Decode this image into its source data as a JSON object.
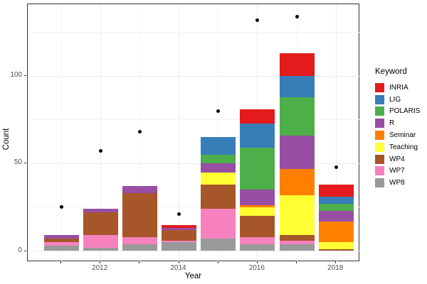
{
  "legend": {
    "title": "Keyword",
    "items": [
      {
        "label": "INRIA",
        "color": "#e41a1c"
      },
      {
        "label": "LIG",
        "color": "#377eb8"
      },
      {
        "label": "POLARIS",
        "color": "#4daf4a"
      },
      {
        "label": "R",
        "color": "#984ea3"
      },
      {
        "label": "Seminar",
        "color": "#ff7f00"
      },
      {
        "label": "Teaching",
        "color": "#ffff33"
      },
      {
        "label": "WP4",
        "color": "#a65628"
      },
      {
        "label": "WP7",
        "color": "#f781bf"
      },
      {
        "label": "WP8",
        "color": "#999999"
      }
    ]
  },
  "chart_data": {
    "type": "bar",
    "stacked": true,
    "title": "",
    "xlabel": "Year",
    "ylabel": "Count",
    "x": [
      2011,
      2012,
      2013,
      2014,
      2015,
      2016,
      2017,
      2018
    ],
    "series": [
      {
        "name": "INRIA",
        "color": "#e41a1c",
        "values": [
          0,
          0,
          0,
          2,
          0,
          8,
          13,
          7
        ]
      },
      {
        "name": "LIG",
        "color": "#377eb8",
        "values": [
          0,
          0,
          0,
          0,
          10,
          14,
          12,
          4
        ]
      },
      {
        "name": "POLARIS",
        "color": "#4daf4a",
        "values": [
          0,
          0,
          0,
          0,
          5,
          24,
          22,
          4
        ]
      },
      {
        "name": "R",
        "color": "#984ea3",
        "values": [
          2,
          2,
          4,
          1,
          5,
          9,
          19,
          6
        ]
      },
      {
        "name": "Seminar",
        "color": "#ff7f00",
        "values": [
          0,
          0,
          0,
          0,
          0,
          1,
          15,
          12
        ]
      },
      {
        "name": "Teaching",
        "color": "#ffff33",
        "values": [
          0,
          0,
          0,
          0,
          7,
          5,
          23,
          4
        ]
      },
      {
        "name": "WP4",
        "color": "#a65628",
        "values": [
          2,
          13,
          25,
          6,
          14,
          12,
          3,
          1
        ]
      },
      {
        "name": "WP7",
        "color": "#f781bf",
        "values": [
          2,
          7,
          4,
          1,
          17,
          4,
          2,
          0
        ]
      },
      {
        "name": "WP8",
        "color": "#999999",
        "values": [
          3,
          2,
          4,
          5,
          7,
          4,
          4,
          0
        ]
      }
    ],
    "bar_totals": [
      9,
      24,
      37,
      15,
      65,
      81,
      113,
      38
    ],
    "points": {
      "type": "scatter",
      "color": "#000000",
      "values": [
        25,
        57,
        68,
        21,
        80,
        132,
        134,
        48
      ]
    },
    "y_breaks": [
      0,
      50,
      100
    ],
    "y_tick_labels": [
      "0",
      "50",
      "100"
    ],
    "y_minor_breaks": [
      25,
      75,
      125
    ],
    "x_tick_years": [
      2011,
      2012,
      2013,
      2014,
      2015,
      2016,
      2017,
      2018
    ],
    "x_labeled_breaks": [
      {
        "year": 2012,
        "label": "2012"
      },
      {
        "year": 2014,
        "label": "2014"
      },
      {
        "year": 2016,
        "label": "2016"
      },
      {
        "year": 2018,
        "label": "2018"
      }
    ],
    "xlim": [
      2010.15,
      2018.61
    ],
    "ylim": [
      -6,
      141
    ],
    "grid": true,
    "legend_position": "right"
  }
}
